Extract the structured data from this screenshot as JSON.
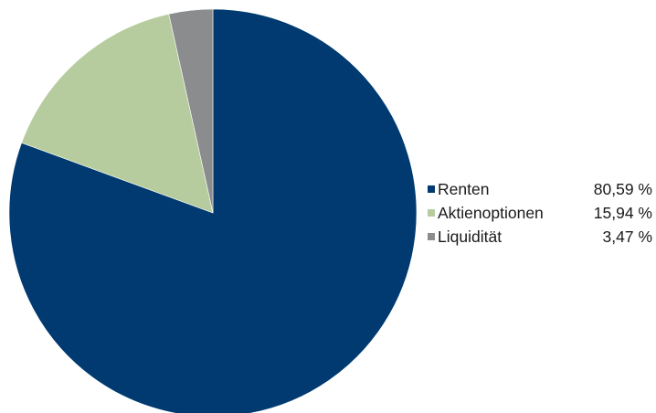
{
  "chart_data": {
    "type": "pie",
    "start_angle": "12 o'clock",
    "direction": "clockwise",
    "legend_position": "right",
    "slices": [
      {
        "label": "Renten",
        "value": 80.59,
        "value_text": "80,59 %",
        "color": "#003a70"
      },
      {
        "label": "Aktienoptionen",
        "value": 15.94,
        "value_text": "15,94 %",
        "color": "#b7cc9e"
      },
      {
        "label": "Liquidität",
        "value": 3.47,
        "value_text": "3,47 %",
        "color": "#8a8c8e"
      }
    ]
  }
}
